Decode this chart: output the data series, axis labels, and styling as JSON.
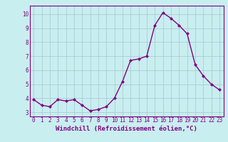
{
  "x": [
    0,
    1,
    2,
    3,
    4,
    5,
    6,
    7,
    8,
    9,
    10,
    11,
    12,
    13,
    14,
    15,
    16,
    17,
    18,
    19,
    20,
    21,
    22,
    23
  ],
  "y": [
    3.9,
    3.5,
    3.4,
    3.9,
    3.8,
    3.9,
    3.5,
    3.1,
    3.2,
    3.4,
    4.0,
    5.2,
    6.7,
    6.8,
    7.0,
    9.2,
    10.1,
    9.7,
    9.2,
    8.6,
    6.4,
    5.6,
    5.0,
    4.6
  ],
  "line_color": "#800080",
  "marker": "D",
  "marker_size": 2.0,
  "linewidth": 1.0,
  "bg_color": "#c8eef0",
  "grid_color": "#a8ccd4",
  "xlabel": "Windchill (Refroidissement éolien,°C)",
  "xlim": [
    -0.5,
    23.5
  ],
  "ylim": [
    2.7,
    10.6
  ],
  "yticks": [
    3,
    4,
    5,
    6,
    7,
    8,
    9,
    10
  ],
  "xticks": [
    0,
    1,
    2,
    3,
    4,
    5,
    6,
    7,
    8,
    9,
    10,
    11,
    12,
    13,
    14,
    15,
    16,
    17,
    18,
    19,
    20,
    21,
    22,
    23
  ],
  "tick_fontsize": 5.5,
  "xlabel_fontsize": 6.5,
  "tick_color": "#800080",
  "xlabel_color": "#800080",
  "spine_color": "#800080"
}
